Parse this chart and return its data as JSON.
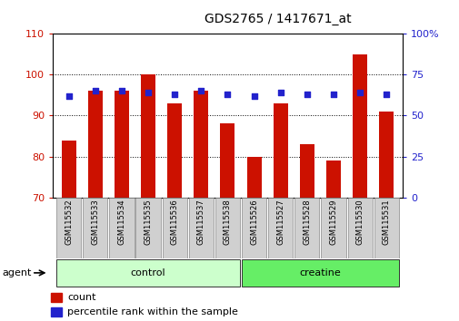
{
  "title": "GDS2765 / 1417671_at",
  "categories": [
    "GSM115532",
    "GSM115533",
    "GSM115534",
    "GSM115535",
    "GSM115536",
    "GSM115537",
    "GSM115538",
    "GSM115526",
    "GSM115527",
    "GSM115528",
    "GSM115529",
    "GSM115530",
    "GSM115531"
  ],
  "count_values": [
    84,
    96,
    96,
    100,
    93,
    96,
    88,
    80,
    93,
    83,
    79,
    105,
    91
  ],
  "percentile_values": [
    62,
    65,
    65,
    64,
    63,
    65,
    63,
    62,
    64,
    63,
    63,
    64,
    63
  ],
  "group_labels": [
    "control",
    "creatine"
  ],
  "group_sizes": [
    7,
    6
  ],
  "group_colors_light": [
    "#ccffcc",
    "#66ee66"
  ],
  "bar_color": "#cc1100",
  "dot_color": "#2222cc",
  "ylim_left": [
    70,
    110
  ],
  "ylim_right": [
    0,
    100
  ],
  "yticks_left": [
    70,
    80,
    90,
    100,
    110
  ],
  "yticks_right": [
    0,
    25,
    50,
    75,
    100
  ],
  "ytick_labels_right": [
    "0",
    "25",
    "50",
    "75",
    "100%"
  ],
  "background_color": "#ffffff",
  "tick_label_color_left": "#cc1100",
  "tick_label_color_right": "#2222cc",
  "agent_label": "agent",
  "bar_width": 0.55,
  "figwidth": 5.06,
  "figheight": 3.54,
  "dpi": 100
}
